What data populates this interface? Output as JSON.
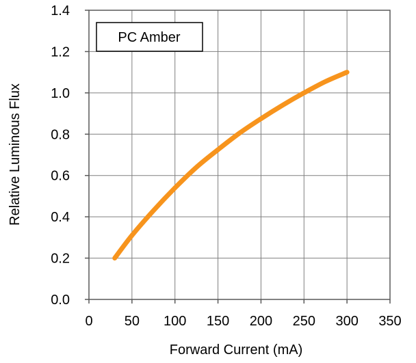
{
  "chart_data": {
    "type": "line",
    "xlabel": "Forward Current (mA)",
    "ylabel": "Relative Luminous Flux",
    "xlim": [
      0,
      350
    ],
    "ylim": [
      0,
      1.4
    ],
    "xticks": [
      0,
      50,
      100,
      150,
      200,
      250,
      300,
      350
    ],
    "yticks": [
      0.0,
      0.2,
      0.4,
      0.6,
      0.8,
      1.0,
      1.2,
      1.4
    ],
    "ytick_labels": [
      "0.0",
      "0.2",
      "0.4",
      "0.6",
      "0.8",
      "1.0",
      "1.2",
      "1.4"
    ],
    "grid": true,
    "legend": {
      "text": "PC Amber",
      "placement": "top-left"
    },
    "series": [
      {
        "name": "PC Amber",
        "color": "#F7941D",
        "x": [
          30,
          50,
          75,
          100,
          125,
          150,
          175,
          200,
          225,
          250,
          275,
          300
        ],
        "y": [
          0.2,
          0.31,
          0.43,
          0.54,
          0.64,
          0.725,
          0.805,
          0.875,
          0.94,
          1.0,
          1.055,
          1.1
        ]
      }
    ]
  }
}
